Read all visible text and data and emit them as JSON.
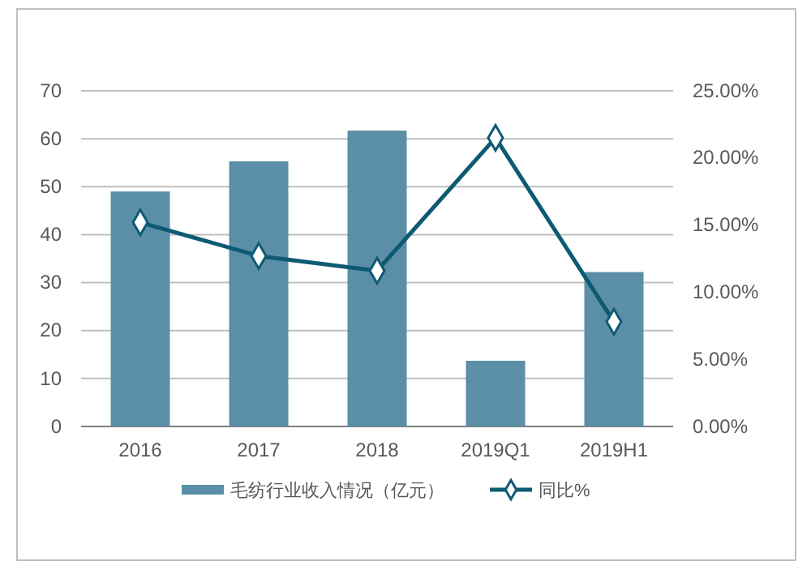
{
  "chart_data": {
    "type": "bar",
    "categories": [
      "2016",
      "2017",
      "2018",
      "2019Q1",
      "2019H1"
    ],
    "series": [
      {
        "name": "毛纺行业收入情况（亿元）",
        "color": "#5b8fa8",
        "values": [
          49.0,
          55.3,
          61.7,
          13.7,
          32.2
        ]
      },
      {
        "name": "同比%",
        "type": "line",
        "axis": "y2",
        "color": "#0e5a73",
        "marker": "diamond",
        "values": [
          15.2,
          12.7,
          11.6,
          21.5,
          7.8
        ]
      }
    ],
    "ylim": [
      0,
      70
    ],
    "yticks": [
      0,
      10,
      20,
      30,
      40,
      50,
      60,
      70
    ],
    "y2lim": [
      0,
      25
    ],
    "y2ticks": [
      {
        "value": 0,
        "label": "0.00%"
      },
      {
        "value": 5,
        "label": "5.00%"
      },
      {
        "value": 10,
        "label": "10.00%"
      },
      {
        "value": 15,
        "label": "15.00%"
      },
      {
        "value": 20,
        "label": "20.00%"
      },
      {
        "value": 25,
        "label": "25.00%"
      }
    ],
    "grid": "y",
    "legend": "bottom"
  }
}
